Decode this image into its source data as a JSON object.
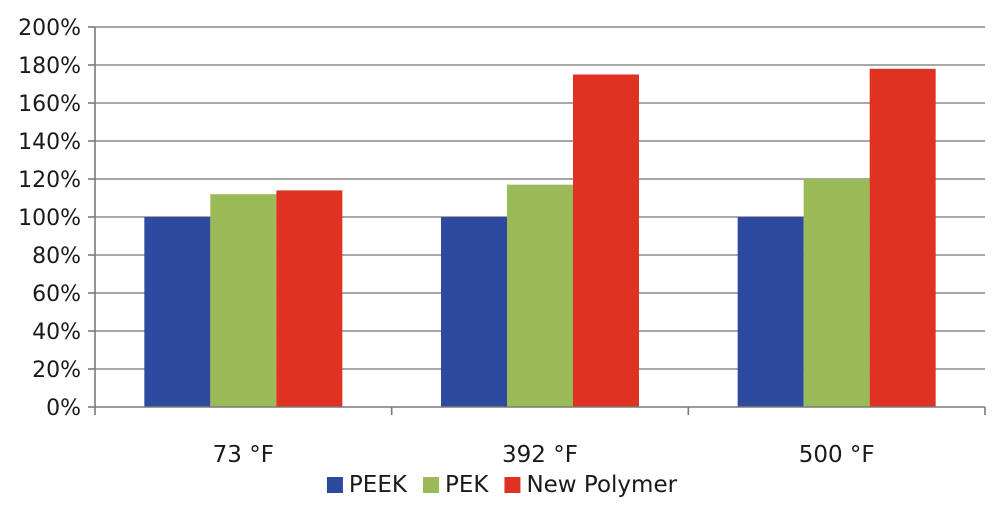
{
  "chart_data": {
    "type": "bar",
    "title": "",
    "xlabel": "",
    "ylabel": "",
    "categories": [
      "73 °F",
      "392 °F",
      "500 °F"
    ],
    "series": [
      {
        "name": "PEEK",
        "values": [
          100,
          100,
          100
        ],
        "color": "#2E4A9E"
      },
      {
        "name": "PEK",
        "values": [
          112,
          117,
          120
        ],
        "color": "#9BBB59"
      },
      {
        "name": "New Polymer",
        "values": [
          114,
          175,
          178
        ],
        "color": "#E03222"
      }
    ],
    "ylim": [
      0,
      200
    ],
    "yticks": [
      0,
      20,
      40,
      60,
      80,
      100,
      120,
      140,
      160,
      180,
      200
    ],
    "ytick_format": "percent",
    "grid": true,
    "legend_position": "bottom"
  }
}
